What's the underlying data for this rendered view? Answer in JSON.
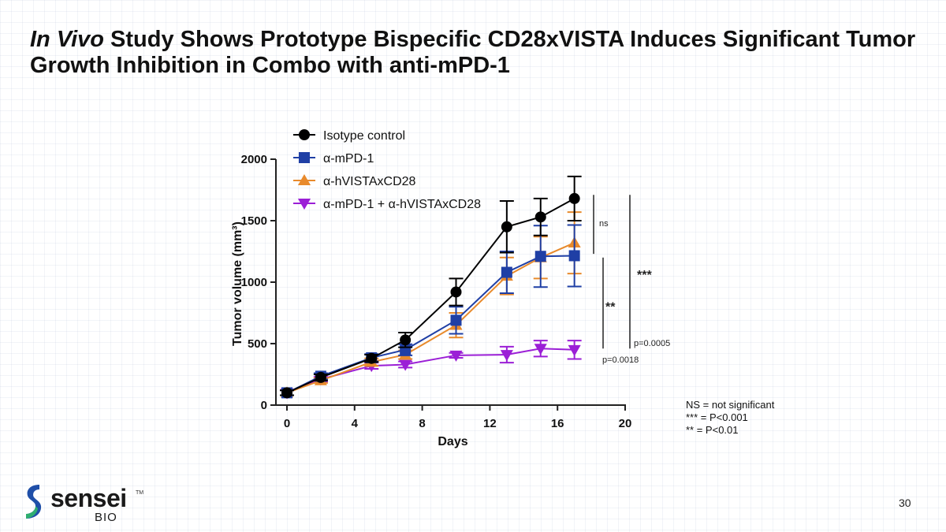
{
  "slide": {
    "title_italic": "In Vivo",
    "title_rest": " Study Shows Prototype Bispecific CD28xVISTA Induces Significant Tumor Growth Inhibition in Combo with anti-mPD-1",
    "page_number": "30",
    "notes": [
      "NS = not significant",
      "*** = P<0.001",
      "** = P<0.01"
    ],
    "logo": {
      "word": "sensei",
      "tm": "TM",
      "sub": "BIO"
    }
  },
  "chart_data": {
    "type": "line",
    "xlabel": "Days",
    "ylabel": "Tumor volume (mm³)",
    "xlim": [
      0,
      20
    ],
    "ylim": [
      0,
      2000
    ],
    "xticks": [
      0,
      4,
      8,
      12,
      16,
      20
    ],
    "yticks": [
      0,
      500,
      1000,
      1500,
      2000
    ],
    "legend_position": "top-left",
    "series": [
      {
        "name": "Isotype control",
        "color": "#000000",
        "marker": "circle",
        "x": [
          0,
          2,
          5,
          7,
          10,
          13,
          15,
          17
        ],
        "y": [
          100,
          225,
          380,
          530,
          920,
          1450,
          1530,
          1680
        ],
        "err": [
          20,
          25,
          30,
          60,
          110,
          210,
          150,
          180
        ]
      },
      {
        "name": "α-mPD-1",
        "color": "#1f3fa5",
        "marker": "square",
        "x": [
          0,
          2,
          5,
          7,
          10,
          13,
          15,
          17
        ],
        "y": [
          100,
          235,
          385,
          450,
          690,
          1080,
          1210,
          1215
        ],
        "err": [
          20,
          25,
          30,
          45,
          110,
          170,
          250,
          250
        ]
      },
      {
        "name": "α-hVISTAxCD28",
        "color": "#e88a2c",
        "marker": "triangle-up",
        "x": [
          0,
          2,
          5,
          7,
          10,
          13,
          15,
          17
        ],
        "y": [
          100,
          200,
          350,
          410,
          650,
          1050,
          1200,
          1320
        ],
        "err": [
          20,
          20,
          30,
          35,
          100,
          150,
          170,
          250
        ]
      },
      {
        "name": "α-mPD-1 + α-hVISTAxCD28",
        "color": "#9b1fd6",
        "marker": "triangle-down",
        "x": [
          0,
          2,
          5,
          7,
          10,
          13,
          15,
          17
        ],
        "y": [
          100,
          210,
          320,
          330,
          405,
          410,
          460,
          450
        ],
        "err": [
          20,
          20,
          25,
          25,
          20,
          65,
          65,
          75
        ]
      }
    ],
    "annotations": [
      {
        "label": "ns",
        "y_from": 1230,
        "y_to": 1710
      },
      {
        "label": "**",
        "y_from": 460,
        "y_to": 1200,
        "p": "p=0.0018"
      },
      {
        "label": "***",
        "y_from": 460,
        "y_to": 1710,
        "p": "p=0.0005"
      }
    ]
  }
}
